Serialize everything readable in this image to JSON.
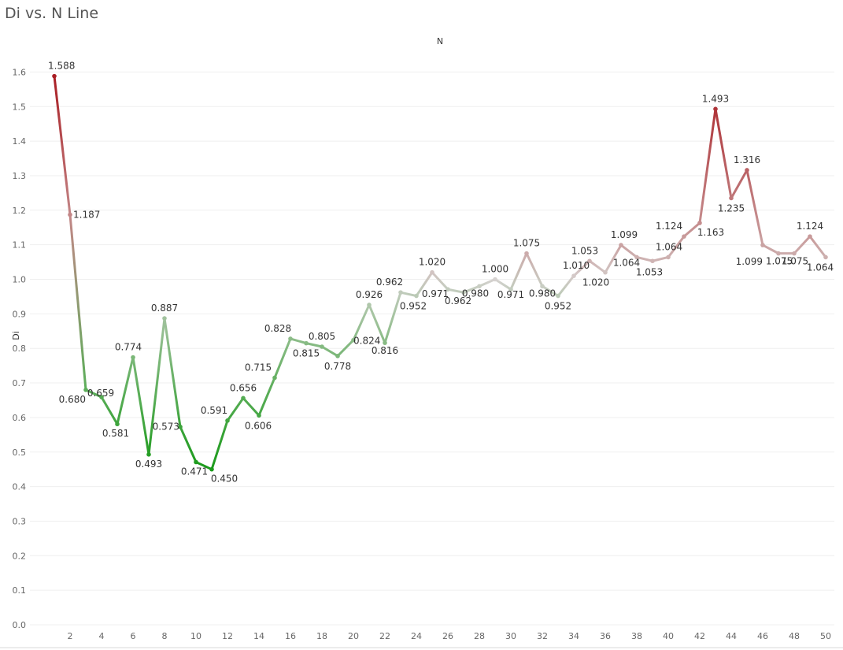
{
  "title": "Di vs. N Line",
  "chart_data": {
    "type": "line",
    "title": "Di vs. N Line",
    "xlabel": "N",
    "ylabel": "Di",
    "x_axis_position": "top",
    "xlim": [
      1,
      50
    ],
    "ylim": [
      0,
      1.65
    ],
    "x_ticks": [
      2,
      4,
      6,
      8,
      10,
      12,
      14,
      16,
      18,
      20,
      22,
      24,
      26,
      28,
      30,
      32,
      34,
      36,
      38,
      40,
      42,
      44,
      46,
      48,
      50
    ],
    "y_ticks": [
      "0.0",
      "0.1",
      "0.2",
      "0.3",
      "0.4",
      "0.5",
      "0.6",
      "0.7",
      "0.8",
      "0.9",
      "1.0",
      "1.1",
      "1.2",
      "1.3",
      "1.4",
      "1.5",
      "1.6"
    ],
    "grid": true,
    "color_scale": {
      "low": "#1a9a1a",
      "mid": "#d6d2d0",
      "high": "#a91d23"
    },
    "x": [
      1,
      2,
      3,
      4,
      5,
      6,
      7,
      8,
      9,
      10,
      11,
      12,
      13,
      14,
      15,
      16,
      17,
      18,
      19,
      20,
      21,
      22,
      23,
      24,
      25,
      26,
      27,
      28,
      29,
      30,
      31,
      32,
      33,
      34,
      35,
      36,
      37,
      38,
      39,
      40,
      41,
      42,
      43,
      44,
      45,
      46,
      47,
      48,
      49,
      50
    ],
    "values": [
      1.588,
      1.187,
      0.68,
      0.659,
      0.581,
      0.774,
      0.493,
      0.887,
      0.573,
      0.471,
      0.45,
      0.591,
      0.656,
      0.606,
      0.715,
      0.828,
      0.815,
      0.805,
      0.778,
      0.824,
      0.926,
      0.816,
      0.962,
      0.952,
      1.02,
      0.971,
      0.962,
      0.98,
      1.0,
      0.971,
      1.075,
      0.98,
      0.952,
      1.01,
      1.053,
      1.02,
      1.099,
      1.064,
      1.053,
      1.064,
      1.124,
      1.163,
      1.493,
      1.235,
      1.316,
      1.099,
      1.075,
      1.075,
      1.124,
      1.064
    ],
    "data_labels": [
      "1.588",
      "1.187",
      "0.680",
      "0.659",
      "0.581",
      "0.774",
      "0.493",
      "0.887",
      "0.573",
      "0.471",
      "0.450",
      "0.591",
      "0.656",
      "0.606",
      "0.715",
      "0.828",
      "0.815",
      "0.805",
      "0.778",
      "0.824",
      "0.926",
      "0.816",
      "0.962",
      "0.952",
      "1.020",
      "0.971",
      "0.962",
      "0.980",
      "1.000",
      "0.971",
      "1.075",
      "0.980",
      "0.952",
      "1.010",
      "1.053",
      "1.020",
      "1.099",
      "1.064",
      "1.053",
      "1.064",
      "1.124",
      "1.163",
      "1.493",
      "1.235",
      "1.316",
      "1.099",
      "1.075",
      "1.075",
      "1.124",
      "1.064"
    ]
  }
}
